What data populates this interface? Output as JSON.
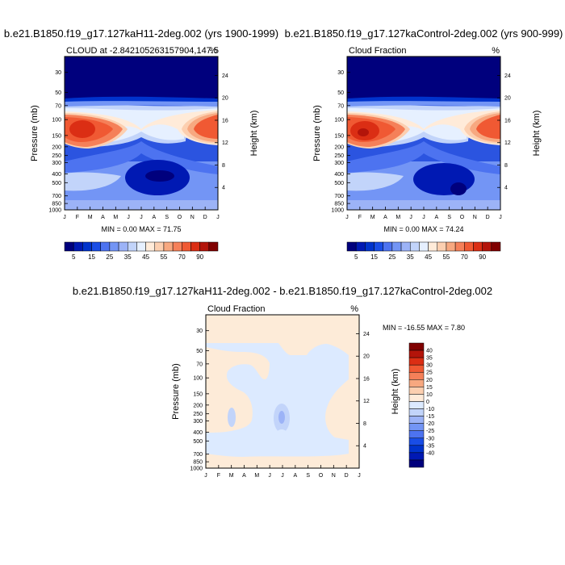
{
  "panel_titles": {
    "top_left": "b.e21.B1850.f19_g17.127kaH11-2deg.002 (yrs 1900-1999)",
    "top_right": "b.e21.B1850.f19_g17.127kaControl-2deg.002 (yrs 900-999)",
    "bottom": "b.e21.B1850.f19_g17.127kaH11-2deg.002 - b.e21.B1850.f19_g17.127kaControl-2deg.002"
  },
  "colors": {
    "abs_scale": [
      "#00007d",
      "#0019b3",
      "#0033cc",
      "#194de6",
      "#4d73f0",
      "#7395f5",
      "#9cb3f7",
      "#c2d4fa",
      "#e6f0ff",
      "#ffebd9",
      "#fccfb0",
      "#f7a880",
      "#f58059",
      "#f05933",
      "#db2e14",
      "#b3140a",
      "#800000"
    ],
    "diff_scale": [
      "#00007d",
      "#0019b3",
      "#0033cc",
      "#194de6",
      "#4d73f0",
      "#7395f5",
      "#9cb3f7",
      "#c2d4fa",
      "#dceaff",
      "#ffebd9",
      "#fccfb0",
      "#f7a880",
      "#f58059",
      "#f05933",
      "#db2e14",
      "#b3140a",
      "#800000"
    ]
  },
  "chart_data": [
    {
      "type": "heatmap",
      "id": "top_left",
      "title": "b.e21.B1850.f19_g17.127kaH11-2deg.002 (yrs 1900-1999)",
      "left_string": "CLOUD at -2.842105263157904,147.5",
      "right_string": "%",
      "ylabel": "Pressure (mb)",
      "y2label": "Height (km)",
      "x_ticks": [
        "J",
        "F",
        "M",
        "A",
        "M",
        "J",
        "J",
        "A",
        "S",
        "O",
        "N",
        "D",
        "J"
      ],
      "pressure_ticks": [
        "30",
        "50",
        "70",
        "100",
        "150",
        "200",
        "250",
        "300",
        "400",
        "500",
        "700",
        "850",
        "1000"
      ],
      "height_ticks": [
        "24",
        "20",
        "16",
        "12",
        "8",
        "4"
      ],
      "stats": "MIN =   0.00 MAX =  71.75",
      "colorbar_labels": [
        "5",
        "15",
        "25",
        "35",
        "45",
        "55",
        "70",
        "90"
      ],
      "min": 0.0,
      "max": 71.75,
      "high_cloud_month_centers": [
        1.5,
        11.5
      ],
      "high_cloud_peak": 71.75,
      "minimum_location": [
        "Aug",
        "450 mb"
      ]
    },
    {
      "type": "heatmap",
      "id": "top_right",
      "title": "b.e21.B1850.f19_g17.127kaControl-2deg.002 (yrs 900-999)",
      "left_string": "Cloud Fraction",
      "right_string": "%",
      "ylabel": "Pressure (mb)",
      "y2label": "Height (km)",
      "x_ticks": [
        "J",
        "F",
        "M",
        "A",
        "M",
        "J",
        "J",
        "A",
        "S",
        "O",
        "N",
        "D",
        "J"
      ],
      "pressure_ticks": [
        "30",
        "50",
        "70",
        "100",
        "150",
        "200",
        "250",
        "300",
        "400",
        "500",
        "700",
        "850",
        "1000"
      ],
      "height_ticks": [
        "24",
        "20",
        "16",
        "12",
        "8",
        "4"
      ],
      "stats": "MIN =   0.00 MAX =  74.24",
      "colorbar_labels": [
        "5",
        "15",
        "25",
        "35",
        "45",
        "55",
        "70",
        "90"
      ],
      "min": 0.0,
      "max": 74.24,
      "high_cloud_month_centers": [
        1.5,
        11.5
      ],
      "high_cloud_peak": 74.24,
      "minimum_location": [
        "Aug",
        "500 mb"
      ]
    },
    {
      "type": "heatmap",
      "id": "bottom",
      "title": "b.e21.B1850.f19_g17.127kaH11-2deg.002 - b.e21.B1850.f19_g17.127kaControl-2deg.002",
      "left_string": "Cloud Fraction",
      "right_string": "%",
      "ylabel": "Pressure (mb)",
      "y2label": "Height (km)",
      "x_ticks": [
        "J",
        "F",
        "M",
        "A",
        "M",
        "J",
        "J",
        "A",
        "S",
        "O",
        "N",
        "D",
        "J"
      ],
      "pressure_ticks": [
        "30",
        "50",
        "70",
        "100",
        "150",
        "200",
        "250",
        "300",
        "400",
        "500",
        "700",
        "850",
        "1000"
      ],
      "height_ticks": [
        "24",
        "20",
        "16",
        "12",
        "8",
        "4"
      ],
      "stats": "MIN = -16.55 MAX =   7.80",
      "colorbar_labels": [
        "40",
        "35",
        "30",
        "25",
        "20",
        "15",
        "10",
        "0",
        "-10",
        "-15",
        "-20",
        "-25",
        "-30",
        "-35",
        "-40"
      ],
      "min": -16.55,
      "max": 7.8
    }
  ]
}
